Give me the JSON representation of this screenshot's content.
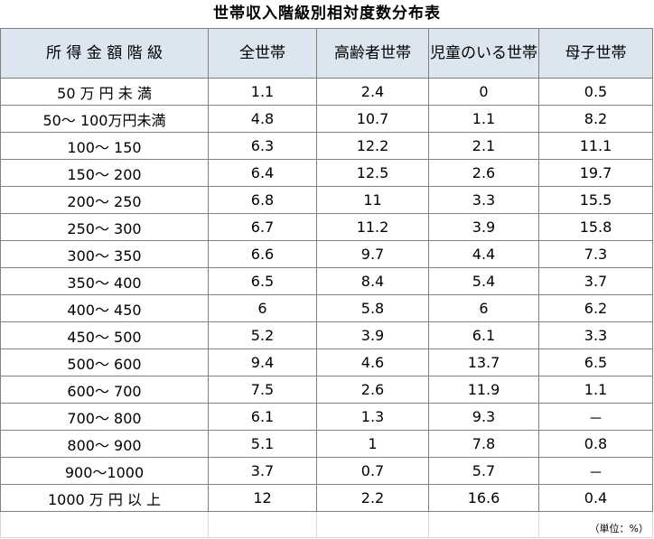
{
  "title": "世帯収入階級別相対度数分布表",
  "headers": [
    "所 得 金 額 階 級",
    "全世帯",
    "高齢者世帯",
    "児童のいる世帯",
    "母子世帯"
  ],
  "rows": [
    [
      "50 万 円 未 満",
      "1.1",
      "2.4",
      "0",
      "0.5"
    ],
    [
      "50～ 100万円未満",
      "4.8",
      "10.7",
      "1.1",
      "8.2"
    ],
    [
      "100～ 150",
      "6.3",
      "12.2",
      "2.1",
      "11.1"
    ],
    [
      "150～ 200",
      "6.4",
      "12.5",
      "2.6",
      "19.7"
    ],
    [
      "200～ 250",
      "6.8",
      "11",
      "3.3",
      "15.5"
    ],
    [
      "250～ 300",
      "6.7",
      "11.2",
      "3.9",
      "15.8"
    ],
    [
      "300～ 350",
      "6.6",
      "9.7",
      "4.4",
      "7.3"
    ],
    [
      "350～ 400",
      "6.5",
      "8.4",
      "5.4",
      "3.7"
    ],
    [
      "400～ 450",
      "6",
      "5.8",
      "6",
      "6.2"
    ],
    [
      "450～ 500",
      "5.2",
      "3.9",
      "6.1",
      "3.3"
    ],
    [
      "500～ 600",
      "9.4",
      "4.6",
      "13.7",
      "6.5"
    ],
    [
      "600～ 700",
      "7.5",
      "2.6",
      "11.9",
      "1.1"
    ],
    [
      "700～ 800",
      "6.1",
      "1.3",
      "9.3",
      "－"
    ],
    [
      "800～ 900",
      "5.1",
      "1",
      "7.8",
      "0.8"
    ],
    [
      "900～1000",
      "3.7",
      "0.7",
      "5.7",
      "－"
    ],
    [
      "1000 万 円 以 上",
      "12",
      "2.2",
      "16.6",
      "0.4"
    ]
  ],
  "note": "（単位：%）"
}
